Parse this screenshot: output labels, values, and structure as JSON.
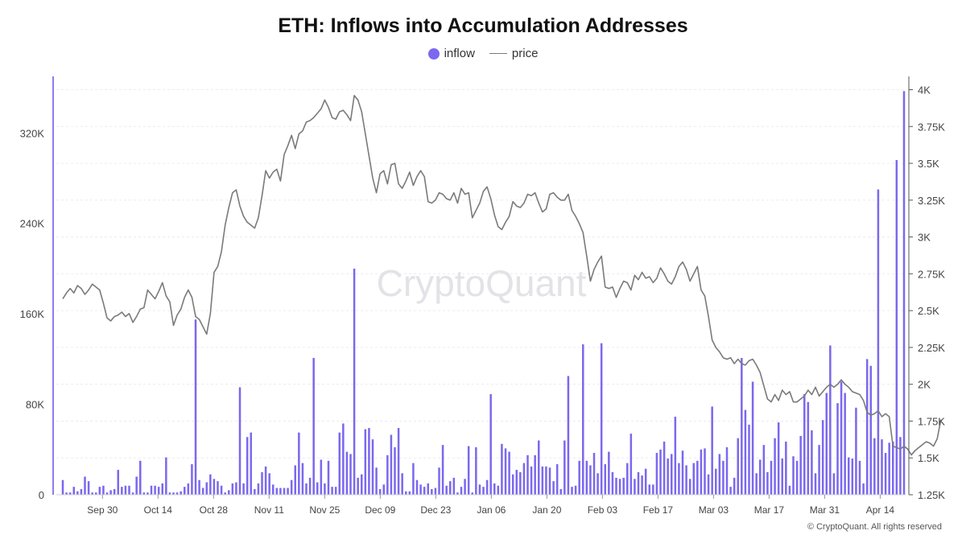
{
  "chart_data": {
    "type": "bar+line",
    "title": "ETH: Inflows into Accumulation Addresses",
    "legend_placement": "top-center",
    "grid": true,
    "x_tick_labels": [
      "Sep 30",
      "Oct 14",
      "Oct 28",
      "Nov 11",
      "Nov 25",
      "Dec 09",
      "Dec 23",
      "Jan 06",
      "Jan 20",
      "Feb 03",
      "Feb 17",
      "Mar 03",
      "Mar 17",
      "Mar 31",
      "Apr 14"
    ],
    "x_start": "2024-09-20",
    "x_end": "2025-04-20",
    "left_axis": {
      "ylim": [
        0,
        370000
      ],
      "tick_values": [
        0,
        80000,
        160000,
        240000,
        320000
      ],
      "tick_labels": [
        "0",
        "80K",
        "160K",
        "240K",
        "320K"
      ]
    },
    "right_axis": {
      "ylim": [
        1250,
        4090
      ],
      "tick_values": [
        1250,
        1500,
        1750,
        2000,
        2250,
        2500,
        2750,
        3000,
        3250,
        3500,
        3750,
        4000
      ],
      "tick_labels": [
        "1.25K",
        "1.5K",
        "1.75K",
        "2K",
        "2.25K",
        "2.5K",
        "2.75K",
        "3K",
        "3.25K",
        "3.5K",
        "3.75K",
        "4K"
      ]
    },
    "series": [
      {
        "name": "inflow",
        "kind": "bar",
        "axis": "left",
        "color": "#7b68ee",
        "values": [
          13000,
          2000,
          2000,
          7000,
          3000,
          5000,
          16000,
          12000,
          2000,
          2000,
          7000,
          8000,
          2000,
          4000,
          5000,
          22000,
          7000,
          8000,
          8000,
          2000,
          16000,
          30000,
          2000,
          2000,
          8000,
          8000,
          7000,
          10000,
          33000,
          2000,
          2000,
          2000,
          3000,
          7000,
          10000,
          27000,
          155000,
          13000,
          6000,
          11000,
          18000,
          14000,
          12000,
          8000,
          2000,
          4000,
          10000,
          11000,
          95000,
          10000,
          51000,
          55000,
          5000,
          10000,
          20000,
          25000,
          19000,
          9000,
          6000,
          6000,
          6000,
          6000,
          13000,
          26000,
          55000,
          28000,
          10000,
          15000,
          121000,
          11000,
          31000,
          10000,
          30000,
          7000,
          7000,
          55000,
          63000,
          38000,
          36000,
          200000,
          15000,
          18000,
          58000,
          59000,
          49000,
          24000,
          5000,
          9000,
          35000,
          53000,
          42000,
          59000,
          19000,
          3000,
          3000,
          28000,
          13000,
          9000,
          7000,
          10000,
          5000,
          6000,
          24000,
          44000,
          8000,
          12000,
          15000,
          2000,
          7000,
          14000,
          43000,
          2000,
          42000,
          9000,
          7000,
          13000,
          89000,
          10000,
          8000,
          45000,
          41000,
          38000,
          18000,
          22000,
          20000,
          28000,
          35000,
          25000,
          35000,
          48000,
          25000,
          25000,
          24000,
          12000,
          27000,
          5000,
          48000,
          105000,
          7000,
          8000,
          30000,
          133000,
          30000,
          26000,
          37000,
          19000,
          134000,
          27000,
          38000,
          20000,
          15000,
          14000,
          15000,
          28000,
          54000,
          14000,
          20000,
          17000,
          23000,
          9000,
          9000,
          37000,
          40000,
          47000,
          32000,
          36000,
          69000,
          28000,
          39000,
          26000,
          14000,
          28000,
          30000,
          40000,
          41000,
          18000,
          78000,
          23000,
          36000,
          30000,
          42000,
          7000,
          15000,
          50000,
          121000,
          75000,
          62000,
          100000,
          19000,
          31000,
          44000,
          20000,
          30000,
          50000,
          64000,
          32000,
          47000,
          8000,
          34000,
          30000,
          52000,
          89000,
          82000,
          57000,
          19000,
          44000,
          66000,
          90000,
          132000,
          19000,
          81000,
          100000,
          90000,
          33000,
          32000,
          77000,
          30000,
          10000,
          120000,
          114000,
          50000,
          270000,
          49000,
          37000,
          46000,
          47000,
          296000,
          51000,
          357000
        ]
      },
      {
        "name": "price",
        "kind": "line",
        "axis": "right",
        "color": "#7a7a7a",
        "values": [
          2580,
          2620,
          2650,
          2620,
          2670,
          2650,
          2610,
          2640,
          2680,
          2660,
          2640,
          2550,
          2450,
          2430,
          2460,
          2470,
          2490,
          2460,
          2480,
          2420,
          2460,
          2510,
          2520,
          2640,
          2610,
          2580,
          2630,
          2690,
          2600,
          2560,
          2400,
          2470,
          2510,
          2590,
          2640,
          2590,
          2460,
          2440,
          2390,
          2340,
          2480,
          2760,
          2800,
          2900,
          3080,
          3200,
          3300,
          3320,
          3210,
          3140,
          3100,
          3080,
          3060,
          3130,
          3280,
          3450,
          3400,
          3440,
          3460,
          3380,
          3560,
          3620,
          3690,
          3600,
          3700,
          3720,
          3780,
          3790,
          3810,
          3840,
          3870,
          3930,
          3880,
          3810,
          3800,
          3850,
          3860,
          3830,
          3790,
          3960,
          3930,
          3850,
          3700,
          3550,
          3400,
          3300,
          3430,
          3450,
          3360,
          3490,
          3500,
          3360,
          3330,
          3380,
          3440,
          3350,
          3410,
          3450,
          3410,
          3240,
          3230,
          3250,
          3300,
          3290,
          3260,
          3250,
          3300,
          3230,
          3330,
          3290,
          3300,
          3130,
          3180,
          3230,
          3310,
          3340,
          3260,
          3150,
          3070,
          3050,
          3100,
          3140,
          3240,
          3210,
          3200,
          3230,
          3290,
          3280,
          3300,
          3230,
          3170,
          3190,
          3290,
          3300,
          3270,
          3250,
          3250,
          3290,
          3180,
          3140,
          3090,
          3030,
          2870,
          2700,
          2780,
          2830,
          2870,
          2660,
          2650,
          2660,
          2590,
          2650,
          2700,
          2690,
          2640,
          2740,
          2710,
          2760,
          2720,
          2730,
          2690,
          2720,
          2790,
          2750,
          2700,
          2680,
          2730,
          2800,
          2830,
          2780,
          2700,
          2750,
          2800,
          2640,
          2600,
          2460,
          2300,
          2250,
          2220,
          2180,
          2170,
          2180,
          2140,
          2170,
          2140,
          2130,
          2160,
          2170,
          2130,
          2080,
          1990,
          1900,
          1880,
          1930,
          1890,
          1960,
          1930,
          1950,
          1880,
          1880,
          1900,
          1920,
          1960,
          1930,
          1980,
          1920,
          1950,
          1980,
          2000,
          1980,
          2000,
          2030,
          2000,
          1980,
          1950,
          1940,
          1930,
          1890,
          1810,
          1790,
          1800,
          1820,
          1780,
          1800,
          1780,
          1580,
          1570,
          1560,
          1580,
          1560,
          1520,
          1550,
          1570,
          1590,
          1610,
          1600,
          1580,
          1630,
          1760
        ]
      }
    ]
  },
  "watermark": "CryptoQuant",
  "copyright": "© CryptoQuant. All rights reserved",
  "colors": {
    "inflow": "#7b68ee",
    "price": "#7a7a7a",
    "grid": "#ececf0",
    "axis_line": "#8e7cf0"
  }
}
